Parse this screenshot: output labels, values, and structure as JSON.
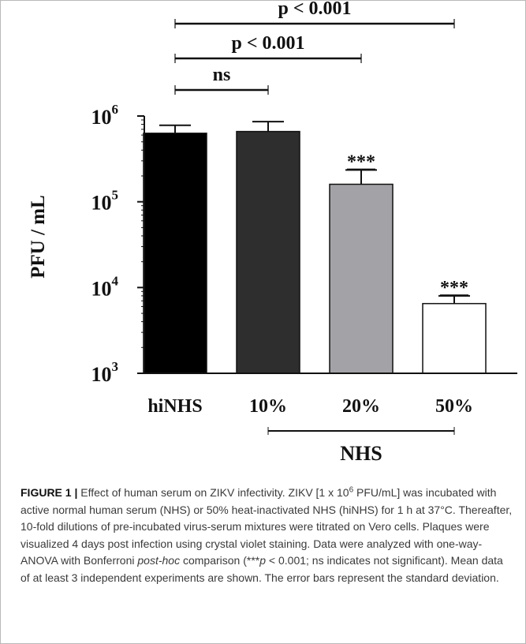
{
  "chart_data": {
    "type": "bar",
    "categories": [
      "hiNHS",
      "10%",
      "20%",
      "50%"
    ],
    "values": [
      630000,
      660000,
      160000,
      6500
    ],
    "error_upper": [
      780000,
      860000,
      235000,
      8000
    ],
    "bar_colors": [
      "#000000",
      "#2e2e2e",
      "#a3a2a6",
      "#ffffff"
    ],
    "significance_labels": [
      "",
      "",
      "***",
      "***"
    ],
    "ylabel": "PFU / mL",
    "yscale": "log",
    "ylim": [
      1000,
      1000000
    ],
    "y_ticks": [
      {
        "value": 1000,
        "base": "10",
        "exp": "3"
      },
      {
        "value": 10000,
        "base": "10",
        "exp": "4"
      },
      {
        "value": 100000,
        "base": "10",
        "exp": "5"
      },
      {
        "value": 1000000,
        "base": "10",
        "exp": "6"
      }
    ],
    "group_label": "NHS",
    "comparisons": [
      {
        "from": "hiNHS",
        "to": "10%",
        "label": "ns"
      },
      {
        "from": "hiNHS",
        "to": "20%",
        "label": "p < 0.001"
      },
      {
        "from": "hiNHS",
        "to": "50%",
        "label": "p < 0.001"
      }
    ]
  },
  "caption": {
    "figure_label": "FIGURE 1",
    "separator": "|",
    "part1": " Effect of human serum on ZIKV infectivity. ZIKV [1 x 10",
    "sup_exp": "6",
    "part2": " PFU/mL] was incubated with active normal human serum (NHS) or 50% heat-inactivated NHS (hiNHS) for 1 h at 37°C. Thereafter, 10-fold dilutions of pre-incubated virus-serum mixtures were titrated on Vero cells. Plaques were visualized 4 days post infection using crystal violet staining. Data were analyzed with one-way-ANOVA with Bonferroni ",
    "italic_term": "post-hoc",
    "part3": " comparison (***",
    "italic_p": "p",
    "part4": " < 0.001; ns indicates not significant). Mean data of at least 3 independent experiments are shown. The error bars represent the standard deviation."
  }
}
